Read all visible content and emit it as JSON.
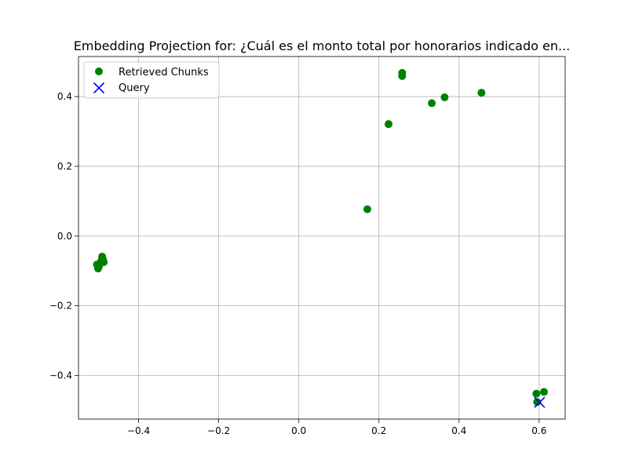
{
  "chart_data": {
    "type": "scatter",
    "title": "Embedding Projection for: ¿Cuál es el monto total por honorarios indicado en...",
    "xlabel": "",
    "ylabel": "",
    "xlim": [
      -0.55,
      0.665
    ],
    "ylim": [
      -0.525,
      0.515
    ],
    "xticks": [
      -0.4,
      -0.2,
      0.0,
      0.2,
      0.4,
      0.6
    ],
    "yticks": [
      -0.4,
      -0.2,
      0.0,
      0.2,
      0.4
    ],
    "xtick_labels": [
      "−0.4",
      "−0.2",
      "0.0",
      "0.2",
      "0.4",
      "0.6"
    ],
    "ytick_labels": [
      "−0.4",
      "−0.2",
      "0.0",
      "0.2",
      "0.4"
    ],
    "grid": true,
    "legend_position": "top-left",
    "series": [
      {
        "name": "Retrieved Chunks",
        "marker": "circle",
        "color": "#008000",
        "points": [
          {
            "x": 0.258,
            "y": 0.468
          },
          {
            "x": 0.258,
            "y": 0.459
          },
          {
            "x": 0.456,
            "y": 0.411
          },
          {
            "x": 0.364,
            "y": 0.398
          },
          {
            "x": 0.332,
            "y": 0.381
          },
          {
            "x": 0.224,
            "y": 0.321
          },
          {
            "x": 0.171,
            "y": 0.077
          },
          {
            "x": -0.491,
            "y": -0.059
          },
          {
            "x": -0.489,
            "y": -0.067
          },
          {
            "x": -0.493,
            "y": -0.071
          },
          {
            "x": -0.487,
            "y": -0.075
          },
          {
            "x": -0.496,
            "y": -0.078
          },
          {
            "x": -0.504,
            "y": -0.082
          },
          {
            "x": -0.499,
            "y": -0.086
          },
          {
            "x": -0.501,
            "y": -0.093
          },
          {
            "x": 0.612,
            "y": -0.447
          },
          {
            "x": 0.593,
            "y": -0.452
          },
          {
            "x": 0.595,
            "y": -0.476
          }
        ]
      },
      {
        "name": "Query",
        "marker": "x",
        "color": "#0000ff",
        "points": [
          {
            "x": 0.601,
            "y": -0.477
          }
        ]
      }
    ]
  }
}
